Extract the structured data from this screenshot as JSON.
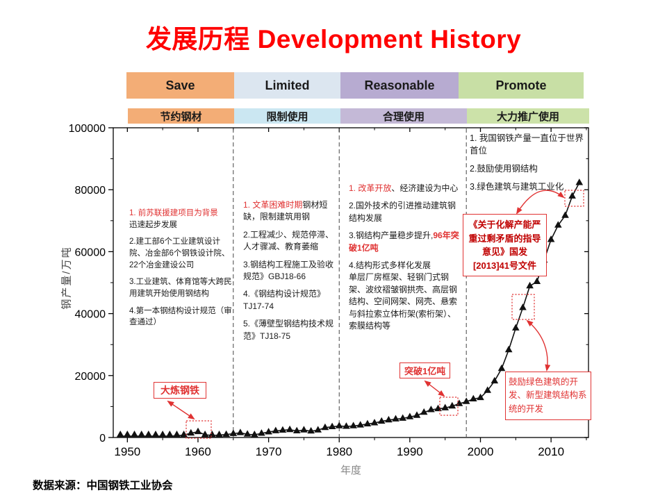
{
  "title": {
    "text": "发展历程 Development History"
  },
  "bands": {
    "row1": [
      {
        "label": "Save",
        "bg": "#F3AD76"
      },
      {
        "label": "Limited",
        "bg": "#DCE6F0"
      },
      {
        "label": "Reasonable",
        "bg": "#B7ABD1"
      },
      {
        "label": "Promote",
        "bg": "#C8DFA5"
      }
    ],
    "row2": [
      {
        "label": "节约钢材",
        "bg": "#F3AD76"
      },
      {
        "label": "限制使用",
        "bg": "#CBE7F2"
      },
      {
        "label": "合理使用",
        "bg": "#C4B9D7"
      },
      {
        "label": "大力推广使用",
        "bg": "#CCE2A9"
      }
    ]
  },
  "chart_data": {
    "type": "scatter",
    "marker": "triangle",
    "line_connect": true,
    "title": "",
    "xlabel": "年度",
    "ylabel": "钢产量/万吨",
    "xlim": [
      1948,
      2015.3
    ],
    "ylim": [
      0,
      100000
    ],
    "x_ticks": [
      1950,
      1960,
      1970,
      1980,
      1990,
      2000,
      2010
    ],
    "y_ticks": [
      0,
      20000,
      40000,
      60000,
      80000,
      100000
    ],
    "period_dividers_year": [
      1965,
      1980,
      1998
    ],
    "series": [
      {
        "name": "中国钢产量/万吨",
        "x_start": 1949,
        "x_step": 1,
        "values": [
          16,
          61,
          90,
          135,
          177,
          223,
          285,
          447,
          535,
          800,
          1387,
          1866,
          870,
          667,
          762,
          964,
          1223,
          1532,
          1029,
          904,
          1333,
          1779,
          2132,
          2338,
          2522,
          2112,
          2390,
          2046,
          2374,
          3178,
          3448,
          3712,
          3560,
          3716,
          4002,
          4347,
          4679,
          5221,
          5628,
          5943,
          6159,
          6635,
          7100,
          8094,
          8956,
          9261,
          9536,
          10124,
          10894,
          11559,
          12426,
          12850,
          15163,
          18237,
          22234,
          28291,
          35324,
          41915,
          48929,
          50306,
          57218,
          63874,
          68528,
          71654,
          77904,
          82270
        ]
      }
    ]
  },
  "annotations": {
    "save": [
      [
        {
          "t": "1. 前苏联援建项目为背景",
          "red": true
        },
        {
          "t": "迅速起步发展",
          "br": true
        }
      ],
      [
        {
          "t": "2.建工部6个工业建筑设计院、冶金部6个钢铁设计院、22个冶金建设公司"
        }
      ],
      [
        {
          "t": "3.工业建筑、体育馆等大跨民用建筑开始使用钢结构"
        }
      ],
      [
        {
          "t": "4.第一本钢结构设计规范（审查通过）"
        }
      ]
    ],
    "limited": [
      [
        {
          "t": "1. 文革困难时期",
          "red": true
        },
        {
          "t": "钢材短缺，限制建筑用钢"
        }
      ],
      [
        {
          "t": "2.工程减少、规范停滞、人才骤减、教育萎缩"
        }
      ],
      [
        {
          "t": "3.钢结构工程施工及验收规范》GBJ18-66"
        }
      ],
      [
        {
          "t": "4.《钢结构设计规范》TJ17-74"
        }
      ],
      [
        {
          "t": "5.《薄壁型钢结构技术规范》TJ18-75"
        }
      ]
    ],
    "reasonable": [
      [
        {
          "t": "1. 改革开放",
          "red": true
        },
        {
          "t": "、经济建设为中心"
        }
      ],
      [
        {
          "t": "2.国外技术的引进推动建筑钢结构发展"
        }
      ],
      [
        {
          "t": "3.钢结构产量稳步提升,"
        },
        {
          "t": "96年突破1亿吨",
          "red": true,
          "bold": true
        }
      ],
      [
        {
          "t": "4.结构形式多样化发展"
        },
        {
          "t": "单层厂房框架、轻钢门式钢架、波纹褶皱钢拱壳、高层钢结构、空间网架、网壳、悬索与斜拉索立体桁架(索桁架）、索膜结构等",
          "br": true
        }
      ]
    ],
    "promote": [
      [
        {
          "t": "1. 我国钢铁产量一直位于世界首位"
        }
      ],
      [
        {
          "t": "2.鼓励使用钢结构"
        }
      ],
      [
        {
          "t": "3.绿色建筑与建筑工业化"
        }
      ]
    ]
  },
  "callouts": {
    "dalian": "大炼钢铁",
    "tupo": "突破1亿吨",
    "policy2013": "《关于化解产能严重过剩矛盾的指导意见》国发[2013]41号文件",
    "green_building": "鼓励绿色建筑的开发、新型建筑结构系统的开发"
  },
  "source": {
    "text": "数据来源：中国钢铁工业协会"
  },
  "colors": {
    "title_red": "#FF0000",
    "callout_red": "#E03232",
    "policy_text_red": "#C00000",
    "marker_black": "#111111"
  }
}
